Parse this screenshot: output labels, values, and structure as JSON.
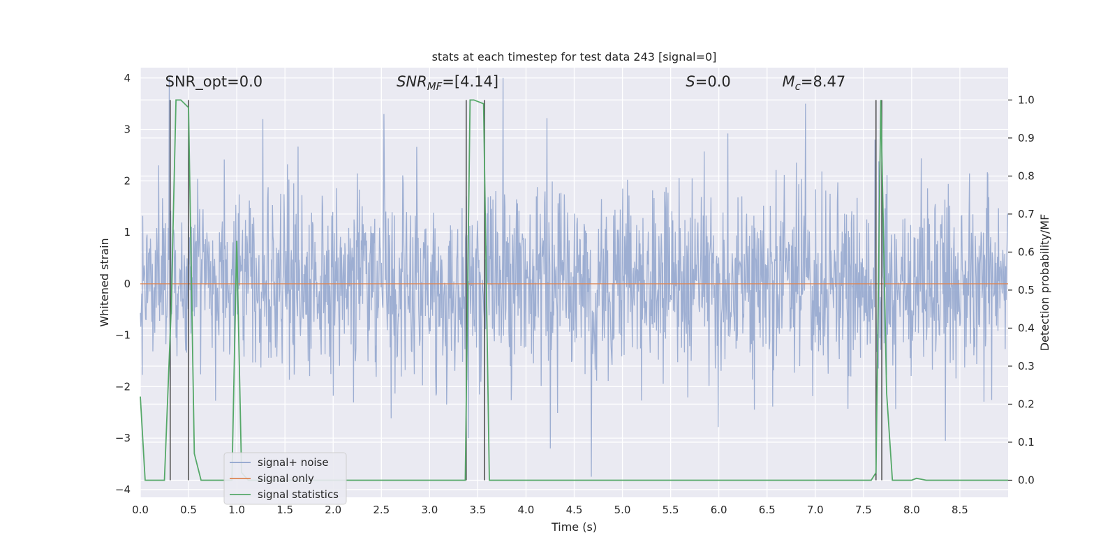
{
  "chart_data": {
    "type": "line",
    "title": "stats at each timestep for test data 243 [signal=0]",
    "xlabel": "Time (s)",
    "ylabel": "Whitened strain",
    "y2label": "Detection probability/MF",
    "xlim": [
      0.0,
      9.0
    ],
    "ylim": [
      -4.15,
      4.2
    ],
    "y2lim": [
      -0.045,
      1.085
    ],
    "xticks": [
      "0.0",
      "0.5",
      "1.0",
      "1.5",
      "2.0",
      "2.5",
      "3.0",
      "3.5",
      "4.0",
      "4.5",
      "5.0",
      "5.5",
      "6.0",
      "6.5",
      "7.0",
      "7.5",
      "8.0",
      "8.5"
    ],
    "yticks": [
      "4",
      "3",
      "2",
      "1",
      "0",
      "−1",
      "−2",
      "−3",
      "−4"
    ],
    "y2ticks": [
      "1.0",
      "0.9",
      "0.8",
      "0.7",
      "0.6",
      "0.5",
      "0.4",
      "0.3",
      "0.2",
      "0.1",
      "0.0"
    ],
    "annotations": [
      {
        "text": "SNR_opt=0.0",
        "x": 0.2
      },
      {
        "text": "SNR",
        "sub": "MF",
        "suffix": "=[4.14]",
        "italic": true,
        "x": 2.6
      },
      {
        "text": "S",
        "suffix": "=0.0",
        "italic": true,
        "x": 5.6
      },
      {
        "text": "M",
        "sub": "c",
        "suffix": "=8.47",
        "italic": true,
        "x": 6.6
      }
    ],
    "legend": {
      "position": "lower-left",
      "entries": [
        {
          "label": "signal+ noise",
          "color": "#8fa3cc"
        },
        {
          "label": "signal only",
          "color": "#dd8452"
        },
        {
          "label": "signal statistics",
          "color": "#55a868"
        }
      ]
    },
    "series": [
      {
        "name": "signal+ noise",
        "axis": "left",
        "noise": {
          "n_samples": 1800,
          "sigma": 0.9,
          "seed": 243,
          "spikes": [
            [
              0.3,
              4.0
            ],
            [
              3.76,
              4.0
            ],
            [
              6.9,
              3.5
            ],
            [
              1.27,
              3.2
            ],
            [
              7.62,
              2.8
            ],
            [
              4.68,
              -3.75
            ],
            [
              3.4,
              -3.0
            ],
            [
              8.35,
              -3.05
            ],
            [
              4.25,
              -3.2
            ]
          ]
        }
      },
      {
        "name": "signal only",
        "axis": "left",
        "x": [
          0.0,
          9.0
        ],
        "y": [
          0.0,
          0.0
        ]
      },
      {
        "name": "signal statistics",
        "axis": "right",
        "x": [
          0.0,
          0.05,
          0.25,
          0.32,
          0.37,
          0.42,
          0.5,
          0.56,
          0.63,
          0.7,
          0.95,
          1.0,
          1.05,
          1.12,
          1.2,
          3.37,
          3.42,
          3.46,
          3.56,
          3.62,
          3.65,
          7.58,
          7.63,
          7.68,
          7.74,
          7.8,
          8.0,
          8.05,
          8.15,
          8.3,
          8.5,
          9.0
        ],
        "y": [
          0.22,
          0.0,
          0.0,
          0.45,
          1.0,
          1.0,
          0.98,
          0.07,
          0.0,
          0.0,
          0.0,
          0.63,
          0.02,
          0.0,
          0.0,
          0.0,
          1.0,
          1.0,
          0.99,
          0.0,
          0.0,
          0.0,
          0.02,
          1.0,
          0.23,
          0.0,
          0.0,
          0.005,
          0.0,
          0.0,
          0.0,
          0.0
        ]
      }
    ],
    "vlines": [
      0.31,
      0.5,
      3.38,
      3.57,
      7.63,
      7.69
    ]
  }
}
